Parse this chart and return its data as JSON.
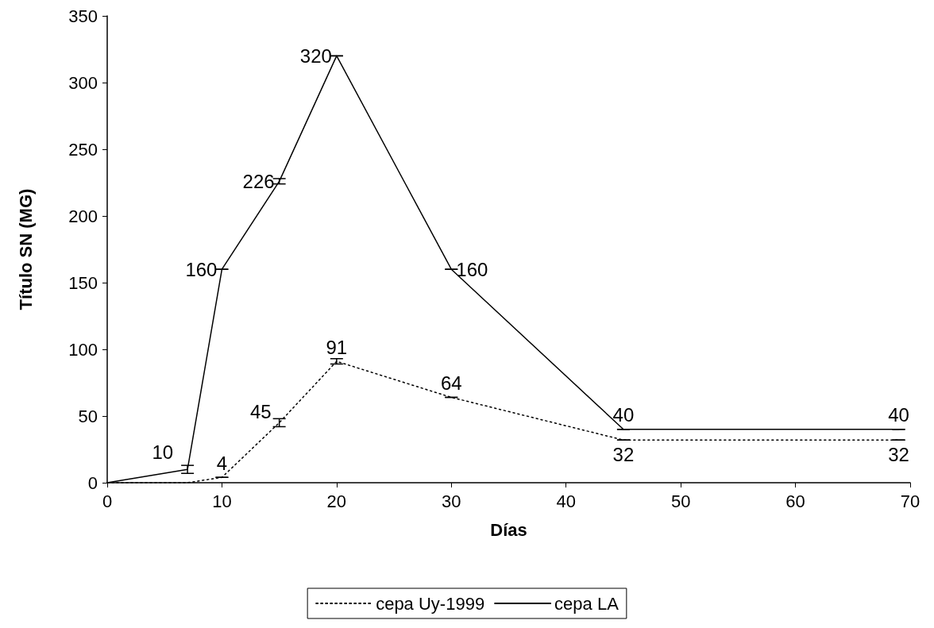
{
  "chart_data": {
    "type": "line",
    "xlabel": "Días",
    "ylabel": "Título SN (MG)",
    "x": [
      0,
      7,
      10,
      15,
      20,
      30,
      45,
      69
    ],
    "series": [
      {
        "name": "cepa Uy-1999",
        "color": "#000000",
        "line_style": "dotted",
        "values": [
          0,
          0,
          4,
          45,
          91,
          64,
          32,
          32
        ],
        "errors": [
          null,
          null,
          0,
          3,
          2,
          0,
          0,
          0
        ],
        "value_labels": [
          null,
          null,
          "4",
          "45",
          "91",
          "64",
          "32",
          "32"
        ]
      },
      {
        "name": "cepa LA",
        "color": "#000000",
        "line_style": "solid",
        "values": [
          0,
          10,
          160,
          226,
          320,
          160,
          40,
          40
        ],
        "errors": [
          null,
          3,
          0,
          2,
          0,
          0,
          0,
          0
        ],
        "value_labels": [
          null,
          "10",
          "160",
          "226",
          "320",
          "160",
          "40",
          "40"
        ]
      }
    ],
    "xlim": [
      0,
      70
    ],
    "xticks": [
      0,
      10,
      20,
      30,
      40,
      50,
      60,
      70
    ],
    "ylim": [
      0,
      350
    ],
    "yticks": [
      0,
      50,
      100,
      150,
      200,
      250,
      300,
      350
    ],
    "grid": false,
    "legend": "bottom",
    "marker": "none"
  }
}
